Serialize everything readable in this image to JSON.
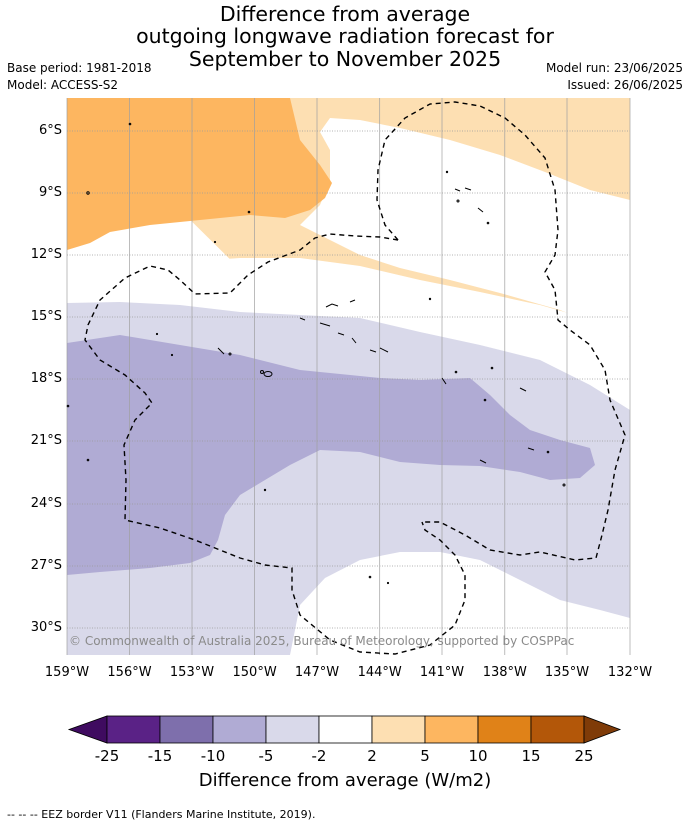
{
  "title": {
    "line1": "Difference from average",
    "line2": "outgoing longwave radiation forecast for",
    "line3": "September to November 2025"
  },
  "meta_left": {
    "base_period": "Base period: 1981-2018",
    "model": "Model: ACCESS-S2"
  },
  "meta_right": {
    "model_run": "Model run: 23/06/2025",
    "issued": "Issued: 26/06/2025"
  },
  "axes": {
    "lat_ticks": [
      "6°S",
      "9°S",
      "12°S",
      "15°S",
      "18°S",
      "21°S",
      "24°S",
      "27°S",
      "30°S"
    ],
    "lon_ticks": [
      "159°W",
      "156°W",
      "153°W",
      "150°W",
      "147°W",
      "144°W",
      "141°W",
      "138°W",
      "135°W",
      "132°W"
    ]
  },
  "copyright": "© Commonwealth of Australia 2025, Bureau of Meteorology, supported by COSPPac",
  "colorbar": {
    "title": "Difference from average (W/m2)",
    "labels": [
      "-25",
      "-15",
      "-10",
      "-5",
      "-2",
      "2",
      "5",
      "10",
      "15",
      "25"
    ],
    "colors": [
      "#3f0b60",
      "#5a2286",
      "#7e6fac",
      "#b0abd4",
      "#d9d9ea",
      "#ffffff",
      "#fddfb2",
      "#fdb660",
      "#e08218",
      "#b35709",
      "#7f3b08"
    ]
  },
  "legend_note": "--  --  -- EEZ border V11 (Flanders Marine Institute, 2019)."
}
